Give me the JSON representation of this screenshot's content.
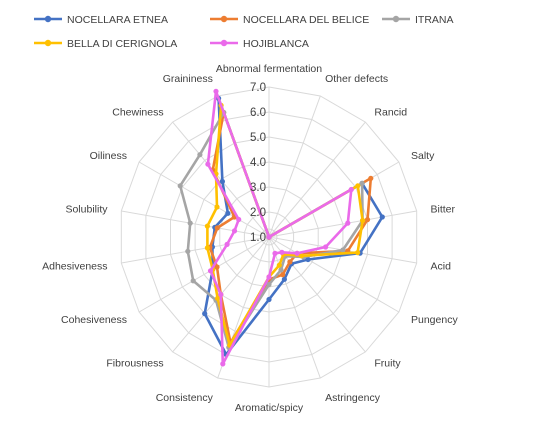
{
  "chart_data": {
    "type": "radar",
    "axes": [
      "Abnormal fermentation",
      "Other defects",
      "Rancid",
      "Salty",
      "Bitter",
      "Acid",
      "Pungency",
      "Fruity",
      "Astringency",
      "Aromatic/spicy",
      "Consistency",
      "Fibrousness",
      "Cohesiveness",
      "Adhesiveness",
      "Solubility",
      "Oiliness",
      "Chewiness",
      "Graininess"
    ],
    "ticks": [
      "1.0",
      "2.0",
      "3.0",
      "4.0",
      "5.0",
      "6.0",
      "7.0"
    ],
    "range": [
      1,
      7
    ],
    "grid": true,
    "legend_position": "top",
    "series": [
      {
        "name": "NOCELLARA ETNEA",
        "color": "#4472C4",
        "values": [
          1.0,
          1.0,
          1.0,
          5.3,
          5.6,
          4.7,
          2.8,
          2.4,
          2.8,
          3.5,
          6.0,
          5.0,
          3.6,
          3.3,
          3.2,
          2.9,
          3.9,
          6.9
        ]
      },
      {
        "name": "NOCELLARA DEL BELICE",
        "color": "#ED7D31",
        "values": [
          1.0,
          1.0,
          1.0,
          5.7,
          5.0,
          4.2,
          2.3,
          2.3,
          2.6,
          2.7,
          5.5,
          4.0,
          3.4,
          3.4,
          3.1,
          2.6,
          4.5,
          6.3
        ]
      },
      {
        "name": "ITRANA",
        "color": "#A5A5A5",
        "values": [
          1.0,
          1.0,
          1.0,
          5.3,
          4.8,
          4.0,
          2.6,
          2.0,
          2.4,
          2.9,
          5.7,
          4.3,
          4.5,
          4.3,
          4.2,
          5.1,
          5.3,
          6.3
        ]
      },
      {
        "name": "BELLA DI CERIGNOLA",
        "color": "#FFC000",
        "values": [
          1.0,
          1.0,
          1.0,
          5.1,
          4.8,
          4.6,
          2.5,
          1.9,
          2.2,
          2.6,
          5.6,
          4.2,
          3.6,
          3.5,
          3.5,
          3.4,
          4.3,
          6.6
        ]
      },
      {
        "name": "HOJIBLANCA",
        "color": "#EA6AEA",
        "values": [
          1.0,
          1.0,
          1.0,
          4.8,
          4.2,
          3.3,
          2.3,
          1.8,
          1.7,
          2.6,
          6.4,
          4.0,
          3.7,
          2.7,
          2.4,
          2.4,
          4.8,
          7.2
        ]
      }
    ]
  }
}
